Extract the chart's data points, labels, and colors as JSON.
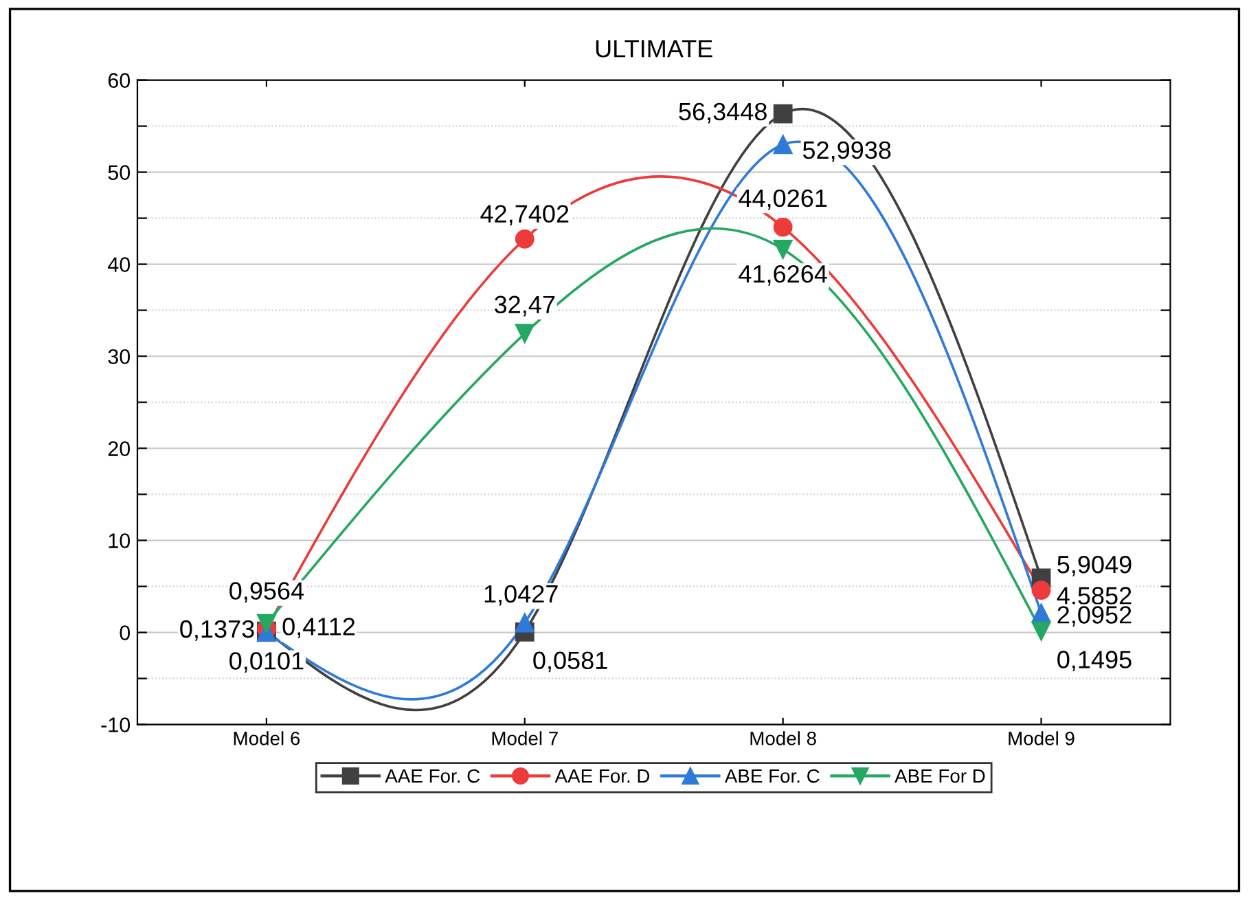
{
  "chart_data": {
    "type": "line",
    "title": "ULTIMATE",
    "categories": [
      "Model 6",
      "Model 7",
      "Model 8",
      "Model 9"
    ],
    "series": [
      {
        "name": "AAE For. C",
        "color": "#404040",
        "marker": "square",
        "values": [
          0.1373,
          0.0581,
          56.3448,
          5.9049
        ],
        "value_labels": [
          "0,1373",
          "0,0581",
          "56,3448",
          "5,9049"
        ]
      },
      {
        "name": "AAE For. D",
        "color": "#ed3b3b",
        "marker": "circle",
        "values": [
          0.4112,
          42.7402,
          44.0261,
          4.5852
        ],
        "value_labels": [
          "0,4112",
          "42,7402",
          "44,0261",
          "4,5852"
        ]
      },
      {
        "name": "ABE For. C",
        "color": "#2f7ad8",
        "marker": "triangle",
        "values": [
          0.0101,
          1.0427,
          52.9938,
          2.0952
        ],
        "value_labels": [
          "0,0101",
          "1,0427",
          "52,9938",
          "2,0952"
        ]
      },
      {
        "name": "ABE For D",
        "color": "#24a862",
        "marker": "triangle_down",
        "values": [
          0.9564,
          32.47,
          41.6264,
          0.1495
        ],
        "value_labels": [
          "0,9564",
          "32,47",
          "41,6264",
          "0,1495"
        ]
      }
    ],
    "ylim": [
      -10,
      60
    ],
    "yticks": [
      -10,
      {
        "value": -5,
        "label": null
      },
      0,
      {
        "value": 5,
        "label": null
      },
      10,
      {
        "value": 15,
        "label": null
      },
      20,
      {
        "value": 25,
        "label": null
      },
      30,
      {
        "value": 35,
        "label": null
      },
      40,
      {
        "value": 45,
        "label": null
      },
      50,
      {
        "value": 55,
        "label": null
      },
      60
    ],
    "grid": "y",
    "legend": "bottom",
    "line_style": "solid"
  }
}
